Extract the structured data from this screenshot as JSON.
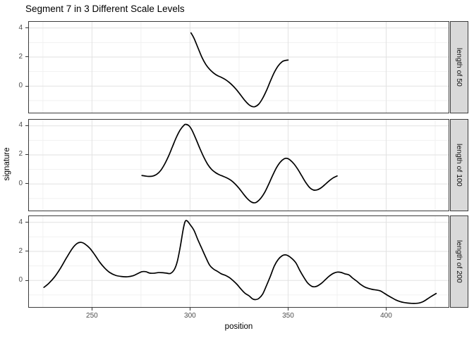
{
  "title": "Segment 7 in 3 Different Scale Levels",
  "x_axis": {
    "label": "position",
    "ticks": [
      250,
      300,
      350,
      400
    ]
  },
  "y_axis": {
    "label": "signature",
    "ticks": [
      4,
      2,
      0
    ]
  },
  "chart_data": {
    "type": "line",
    "title": "Segment 7 in 3 Different Scale Levels",
    "xlabel": "position",
    "ylabel": "signature",
    "line_color": "#000000",
    "panel_bg": "#ffffff",
    "grid_major_color": "#e2e2e2",
    "grid_minor_color": "#f1f1f1",
    "border_color": "#3c3c3c",
    "strip_bg": "#d9d9d9",
    "x_domain": [
      217.5,
      432.2
    ],
    "y_domain": [
      -1.88,
      4.47
    ],
    "x_major": [
      250,
      300,
      350,
      400
    ],
    "x_minor": [
      225,
      275,
      325,
      375,
      425
    ],
    "y_major": [
      0,
      2,
      4
    ],
    "y_minor": [
      -1,
      1,
      3
    ],
    "facets": [
      {
        "label": "length of 50",
        "x_range": [
          300,
          350
        ],
        "points": [
          [
            300.5,
            3.66
          ],
          [
            302,
            3.3
          ],
          [
            304,
            2.65
          ],
          [
            306,
            2.0
          ],
          [
            308,
            1.5
          ],
          [
            310,
            1.15
          ],
          [
            312,
            0.9
          ],
          [
            314,
            0.72
          ],
          [
            316,
            0.6
          ],
          [
            318,
            0.45
          ],
          [
            320,
            0.25
          ],
          [
            322,
            0.0
          ],
          [
            324,
            -0.3
          ],
          [
            326,
            -0.65
          ],
          [
            328,
            -1.0
          ],
          [
            330,
            -1.28
          ],
          [
            331.5,
            -1.4
          ],
          [
            333,
            -1.42
          ],
          [
            335,
            -1.25
          ],
          [
            337,
            -0.85
          ],
          [
            339,
            -0.3
          ],
          [
            341,
            0.35
          ],
          [
            343,
            0.95
          ],
          [
            345,
            1.4
          ],
          [
            347,
            1.68
          ],
          [
            348.5,
            1.76
          ],
          [
            350,
            1.79
          ]
        ]
      },
      {
        "label": "length of 100",
        "x_range": [
          275,
          375
        ],
        "points": [
          [
            275.5,
            0.58
          ],
          [
            277,
            0.55
          ],
          [
            279,
            0.52
          ],
          [
            281,
            0.54
          ],
          [
            283,
            0.66
          ],
          [
            285,
            0.92
          ],
          [
            287,
            1.35
          ],
          [
            289,
            1.9
          ],
          [
            291,
            2.55
          ],
          [
            293,
            3.2
          ],
          [
            295,
            3.72
          ],
          [
            297,
            4.05
          ],
          [
            298,
            4.1
          ],
          [
            299.5,
            4.0
          ],
          [
            301,
            3.7
          ],
          [
            303,
            3.1
          ],
          [
            305,
            2.45
          ],
          [
            307,
            1.85
          ],
          [
            309,
            1.35
          ],
          [
            311,
            1.0
          ],
          [
            313,
            0.78
          ],
          [
            315,
            0.63
          ],
          [
            317,
            0.52
          ],
          [
            319,
            0.4
          ],
          [
            321,
            0.24
          ],
          [
            323,
            0.0
          ],
          [
            325,
            -0.3
          ],
          [
            327,
            -0.65
          ],
          [
            329,
            -0.98
          ],
          [
            331,
            -1.22
          ],
          [
            332.5,
            -1.3
          ],
          [
            334,
            -1.25
          ],
          [
            336,
            -1.0
          ],
          [
            338,
            -0.6
          ],
          [
            340,
            -0.05
          ],
          [
            342,
            0.55
          ],
          [
            344,
            1.1
          ],
          [
            346,
            1.5
          ],
          [
            348,
            1.73
          ],
          [
            349.5,
            1.76
          ],
          [
            351,
            1.65
          ],
          [
            353,
            1.38
          ],
          [
            355,
            1.0
          ],
          [
            357,
            0.55
          ],
          [
            359,
            0.1
          ],
          [
            361,
            -0.25
          ],
          [
            363,
            -0.42
          ],
          [
            365,
            -0.4
          ],
          [
            367,
            -0.25
          ],
          [
            369,
            -0.02
          ],
          [
            371,
            0.22
          ],
          [
            373,
            0.42
          ],
          [
            375,
            0.55
          ]
        ]
      },
      {
        "label": "length of 200",
        "x_range": [
          225,
          425
        ],
        "points": [
          [
            225.5,
            -0.48
          ],
          [
            228,
            -0.2
          ],
          [
            231,
            0.25
          ],
          [
            234,
            0.85
          ],
          [
            237,
            1.55
          ],
          [
            240,
            2.2
          ],
          [
            242.5,
            2.55
          ],
          [
            244.5,
            2.62
          ],
          [
            246.5,
            2.5
          ],
          [
            249,
            2.2
          ],
          [
            251.5,
            1.75
          ],
          [
            254,
            1.25
          ],
          [
            256.5,
            0.85
          ],
          [
            259,
            0.55
          ],
          [
            262,
            0.35
          ],
          [
            265,
            0.27
          ],
          [
            268,
            0.25
          ],
          [
            271,
            0.32
          ],
          [
            273.5,
            0.48
          ],
          [
            275.5,
            0.6
          ],
          [
            277.5,
            0.6
          ],
          [
            279.5,
            0.5
          ],
          [
            282,
            0.5
          ],
          [
            284,
            0.54
          ],
          [
            286,
            0.53
          ],
          [
            288,
            0.5
          ],
          [
            290,
            0.48
          ],
          [
            292,
            0.75
          ],
          [
            293.5,
            1.3
          ],
          [
            295,
            2.3
          ],
          [
            296.5,
            3.5
          ],
          [
            297.5,
            4.05
          ],
          [
            298.5,
            4.1
          ],
          [
            300,
            3.85
          ],
          [
            302,
            3.45
          ],
          [
            304,
            2.8
          ],
          [
            306,
            2.2
          ],
          [
            308,
            1.6
          ],
          [
            310,
            1.05
          ],
          [
            312,
            0.78
          ],
          [
            314,
            0.62
          ],
          [
            316,
            0.45
          ],
          [
            318,
            0.35
          ],
          [
            320,
            0.2
          ],
          [
            322,
            -0.02
          ],
          [
            324,
            -0.28
          ],
          [
            326,
            -0.6
          ],
          [
            328,
            -0.88
          ],
          [
            330,
            -1.05
          ],
          [
            332,
            -1.28
          ],
          [
            333.5,
            -1.32
          ],
          [
            335,
            -1.25
          ],
          [
            337,
            -0.95
          ],
          [
            339,
            -0.35
          ],
          [
            341,
            0.3
          ],
          [
            343,
            1.0
          ],
          [
            345,
            1.45
          ],
          [
            347,
            1.7
          ],
          [
            348.5,
            1.76
          ],
          [
            350,
            1.7
          ],
          [
            352,
            1.5
          ],
          [
            354,
            1.2
          ],
          [
            356,
            0.68
          ],
          [
            358,
            0.22
          ],
          [
            360,
            -0.18
          ],
          [
            362,
            -0.4
          ],
          [
            363.5,
            -0.44
          ],
          [
            365,
            -0.38
          ],
          [
            367,
            -0.2
          ],
          [
            369,
            0.05
          ],
          [
            371,
            0.3
          ],
          [
            373,
            0.48
          ],
          [
            375,
            0.57
          ],
          [
            377,
            0.55
          ],
          [
            379,
            0.45
          ],
          [
            381,
            0.38
          ],
          [
            383,
            0.15
          ],
          [
            385,
            -0.05
          ],
          [
            387,
            -0.28
          ],
          [
            389,
            -0.45
          ],
          [
            391,
            -0.55
          ],
          [
            393,
            -0.62
          ],
          [
            395,
            -0.66
          ],
          [
            397,
            -0.72
          ],
          [
            399,
            -0.88
          ],
          [
            401,
            -1.05
          ],
          [
            403,
            -1.2
          ],
          [
            405,
            -1.35
          ],
          [
            407,
            -1.45
          ],
          [
            409,
            -1.52
          ],
          [
            411,
            -1.56
          ],
          [
            413,
            -1.58
          ],
          [
            415,
            -1.58
          ],
          [
            417,
            -1.55
          ],
          [
            419,
            -1.45
          ],
          [
            421,
            -1.28
          ],
          [
            423,
            -1.1
          ],
          [
            425.5,
            -0.9
          ]
        ]
      }
    ]
  }
}
